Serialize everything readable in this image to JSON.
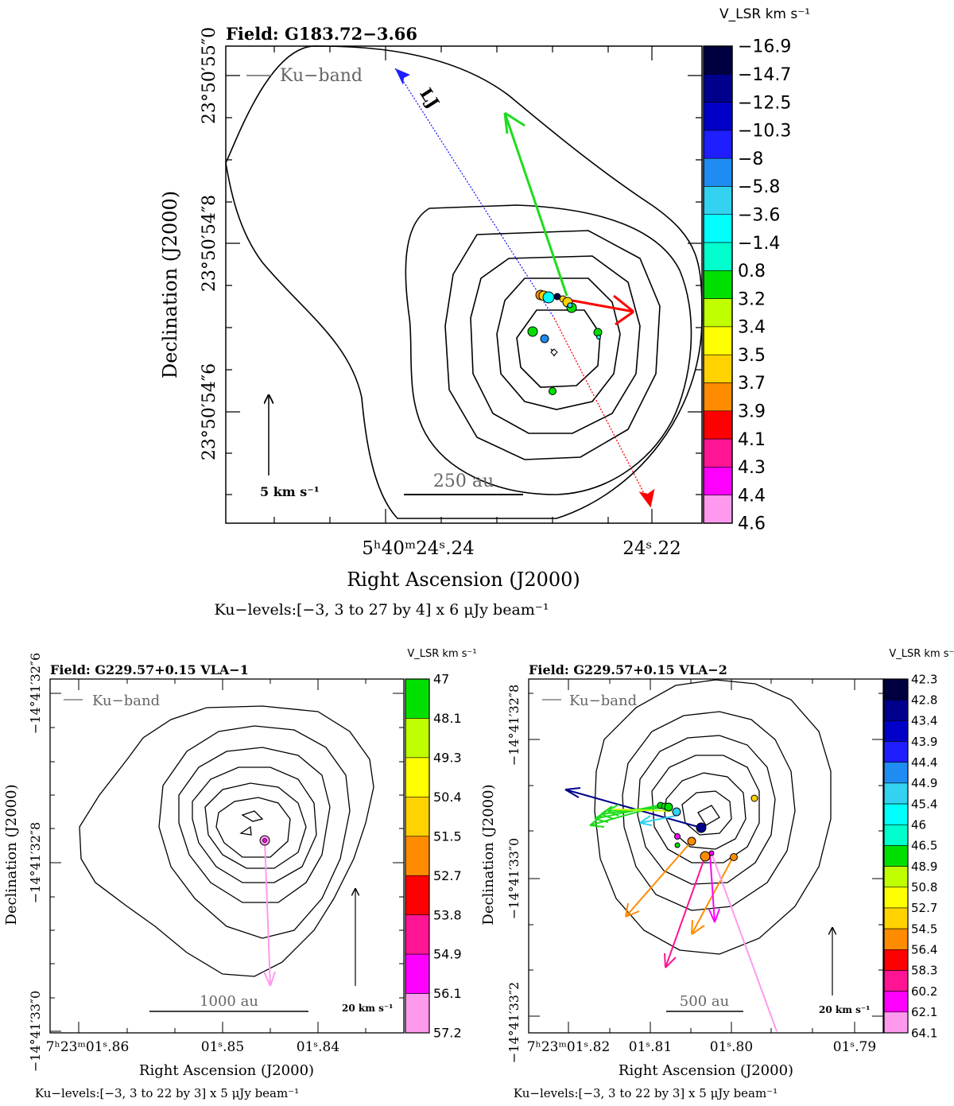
{
  "chart_data": [
    {
      "type": "scatter",
      "title": "Field: G183.72−3.66",
      "legend_label": "Ku−band",
      "xlabel": "Right Ascension (J2000)",
      "ylabel": "Declination (J2000)",
      "xticks": [
        {
          "label": "5ʰ40ᵐ24ˢ.24"
        },
        {
          "label": "24ˢ.22"
        }
      ],
      "yticks": [
        {
          "label": "23°50′55″0"
        },
        {
          "label": "23°50′54″8"
        },
        {
          "label": "23°50′54″6"
        }
      ],
      "levels_note": "Ku−levels:[−3, 3 to 27 by 4] x 6 μJy beam⁻¹",
      "scalebar_label": "250 au",
      "velocity_ref_label": "5 km s⁻¹",
      "jet_label": "LJ",
      "colorbar_title": "V_LSR km s⁻¹",
      "colorbar_values": [
        "−16.9",
        "−14.7",
        "−12.5",
        "−10.3",
        "−8",
        "−5.8",
        "−3.6",
        "−1.4",
        "0.8",
        "3.2",
        "3.4",
        "3.5",
        "3.7",
        "3.9",
        "4.1",
        "4.3",
        "4.4",
        "4.6"
      ],
      "colorbar_colors": [
        "#000040",
        "#00008c",
        "#0000c8",
        "#1e1eff",
        "#1e8cf0",
        "#32d2f0",
        "#00ffff",
        "#00ffcc",
        "#00e000",
        "#c0ff00",
        "#ffff00",
        "#ffd200",
        "#ff8c00",
        "#ff0000",
        "#ff1493",
        "#ff00ff",
        "#ff99ee"
      ]
    },
    {
      "type": "scatter",
      "title": "Field: G229.57+0.15 VLA−1",
      "legend_label": "Ku−band",
      "xlabel": "Right Ascension (J2000)",
      "ylabel": "Declination (J2000)",
      "xticks": [
        {
          "label": "7ʰ23ᵐ01ˢ.86"
        },
        {
          "label": "01ˢ.85"
        },
        {
          "label": "01ˢ.84"
        }
      ],
      "yticks": [
        {
          "label": "−14°41′32″6"
        },
        {
          "label": "−14°41′32″8"
        },
        {
          "label": "−14°41′33″0"
        }
      ],
      "levels_note": "Ku−levels:[−3, 3 to 22 by 3] x 5 μJy beam⁻¹",
      "scalebar_label": "1000 au",
      "velocity_ref_label": "20 km s⁻¹",
      "colorbar_title": "V_LSR km s⁻¹",
      "colorbar_values": [
        "47",
        "48.1",
        "49.3",
        "50.4",
        "51.5",
        "52.7",
        "53.8",
        "54.9",
        "56.1",
        "57.2"
      ],
      "colorbar_colors": [
        "#00e000",
        "#c0ff00",
        "#ffff00",
        "#ffd200",
        "#ff8c00",
        "#ff0000",
        "#ff1493",
        "#ff00ff",
        "#ff99ee"
      ]
    },
    {
      "type": "scatter",
      "title": "Field: G229.57+0.15 VLA−2",
      "legend_label": "Ku−band",
      "xlabel": "Right Ascension (J2000)",
      "ylabel": "Declination (J2000)",
      "xticks": [
        {
          "label": "7ʰ23ᵐ01ˢ.82"
        },
        {
          "label": "01ˢ.81"
        },
        {
          "label": "01ˢ.80"
        },
        {
          "label": "01ˢ.79"
        }
      ],
      "yticks": [
        {
          "label": "−14°41′32″8"
        },
        {
          "label": "−14°41′33″0"
        },
        {
          "label": "−14°41′33″2"
        }
      ],
      "levels_note": "Ku−levels:[−3, 3 to 22 by 3] x 5 μJy beam⁻¹",
      "scalebar_label": "500 au",
      "velocity_ref_label": "20 km s⁻¹",
      "colorbar_title": "V_LSR km s⁻¹",
      "colorbar_values": [
        "42.3",
        "42.8",
        "43.4",
        "43.9",
        "44.4",
        "44.9",
        "45.4",
        "46",
        "46.5",
        "48.9",
        "50.8",
        "52.7",
        "54.5",
        "56.4",
        "58.3",
        "60.2",
        "62.1",
        "64.1"
      ],
      "colorbar_colors": [
        "#000040",
        "#00008c",
        "#0000c8",
        "#1e1eff",
        "#1e8cf0",
        "#32d2f0",
        "#00ffff",
        "#00ffcc",
        "#00e000",
        "#c0ff00",
        "#ffff00",
        "#ffd200",
        "#ff8c00",
        "#ff0000",
        "#ff1493",
        "#ff00ff",
        "#ff99ee"
      ]
    }
  ]
}
